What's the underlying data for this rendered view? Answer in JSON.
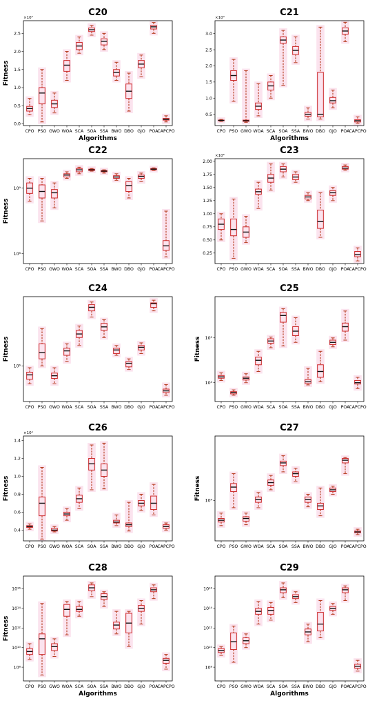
{
  "chart_data": [
    {
      "type": "box",
      "title": "C20",
      "xlabel": "Algorithms",
      "ylabel": "Fitness",
      "scale": "linear",
      "multiplier": "×10⁵",
      "yticks": [
        "0.0",
        "0.5",
        "1.0",
        "1.5",
        "2.0",
        "2.5"
      ],
      "ytick_values": [
        0,
        0.5,
        1.0,
        1.5,
        2.0,
        2.5
      ],
      "ylim": [
        -0.05,
        2.85
      ],
      "categories": [
        "CPO",
        "PSO",
        "GWO",
        "WOA",
        "SCA",
        "SOA",
        "SSA",
        "BWO",
        "DBO",
        "GJO",
        "POA",
        "CAPCPO"
      ],
      "boxes": [
        [
          0.25,
          0.35,
          0.42,
          0.48,
          0.7
        ],
        [
          0.05,
          0.55,
          0.85,
          1.0,
          1.5
        ],
        [
          0.3,
          0.45,
          0.55,
          0.65,
          0.85
        ],
        [
          1.2,
          1.45,
          1.62,
          1.75,
          2.0
        ],
        [
          1.95,
          2.05,
          2.15,
          2.25,
          2.4
        ],
        [
          2.45,
          2.55,
          2.6,
          2.65,
          2.72
        ],
        [
          2.05,
          2.18,
          2.28,
          2.35,
          2.5
        ],
        [
          1.2,
          1.32,
          1.42,
          1.5,
          1.7
        ],
        [
          0.35,
          0.7,
          0.9,
          1.1,
          1.4
        ],
        [
          1.3,
          1.55,
          1.65,
          1.75,
          1.9
        ],
        [
          2.5,
          2.62,
          2.68,
          2.72,
          2.8
        ],
        [
          0.05,
          0.1,
          0.12,
          0.15,
          0.22
        ]
      ]
    },
    {
      "type": "box",
      "title": "C21",
      "xlabel": "Algorithms",
      "ylabel": "",
      "scale": "linear",
      "multiplier": "×10⁴",
      "yticks": [
        "0.5",
        "1.0",
        "1.5",
        "2.0",
        "2.5",
        "3.0"
      ],
      "ytick_values": [
        0.5,
        1.0,
        1.5,
        2.0,
        2.5,
        3.0
      ],
      "ylim": [
        0.15,
        3.4
      ],
      "categories": [
        "CPO",
        "PSO",
        "GWO",
        "WOA",
        "SCA",
        "SOA",
        "SSA",
        "BWO",
        "DBO",
        "GJO",
        "POA",
        "CAPCPO"
      ],
      "boxes": [
        [
          0.28,
          0.3,
          0.31,
          0.32,
          0.34
        ],
        [
          0.9,
          1.55,
          1.7,
          1.85,
          2.2
        ],
        [
          0.25,
          0.28,
          0.3,
          0.32,
          1.85
        ],
        [
          0.45,
          0.65,
          0.75,
          0.85,
          1.45
        ],
        [
          1.0,
          1.25,
          1.38,
          1.5,
          1.7
        ],
        [
          1.4,
          2.7,
          2.8,
          2.9,
          3.1
        ],
        [
          2.1,
          2.35,
          2.48,
          2.6,
          2.9
        ],
        [
          0.35,
          0.44,
          0.5,
          0.56,
          0.7
        ],
        [
          0.35,
          0.42,
          0.5,
          1.8,
          3.2
        ],
        [
          0.7,
          0.85,
          0.92,
          1.02,
          1.25
        ],
        [
          2.75,
          2.98,
          3.08,
          3.18,
          3.35
        ],
        [
          0.22,
          0.26,
          0.3,
          0.33,
          0.42
        ]
      ]
    },
    {
      "type": "box",
      "title": "C22",
      "xlabel": "",
      "ylabel": "Fitness",
      "scale": "log",
      "yticks": [
        "10⁸",
        "10⁹"
      ],
      "ytick_values": [
        8,
        9
      ],
      "ylim": [
        7.85,
        9.45
      ],
      "categories": [
        "CPO",
        "PSO",
        "GWO",
        "WOA",
        "SCA",
        "SOA",
        "SSA",
        "BWO",
        "DBO",
        "GJO",
        "POA",
        "CAPCPO"
      ],
      "boxes": [
        [
          8.8,
          8.92,
          9.0,
          9.08,
          9.15
        ],
        [
          8.5,
          8.85,
          8.95,
          9.05,
          9.15
        ],
        [
          8.7,
          8.85,
          8.93,
          8.98,
          9.08
        ],
        [
          9.15,
          9.17,
          9.2,
          9.22,
          9.25
        ],
        [
          9.22,
          9.25,
          9.28,
          9.3,
          9.32
        ],
        [
          9.26,
          9.27,
          9.28,
          9.29,
          9.3
        ],
        [
          9.23,
          9.25,
          9.26,
          9.27,
          9.28
        ],
        [
          9.12,
          9.15,
          9.17,
          9.19,
          9.22
        ],
        [
          8.85,
          8.95,
          9.04,
          9.1,
          9.15
        ],
        [
          9.1,
          9.15,
          9.18,
          9.2,
          9.23
        ],
        [
          9.27,
          9.28,
          9.29,
          9.3,
          9.31
        ],
        [
          7.95,
          8.05,
          8.12,
          8.2,
          8.65
        ]
      ]
    },
    {
      "type": "box",
      "title": "C23",
      "xlabel": "",
      "ylabel": "",
      "scale": "linear",
      "multiplier": "×10⁵",
      "yticks": [
        "0.25",
        "0.50",
        "0.75",
        "1.00",
        "1.25",
        "1.50",
        "1.75",
        "2.00"
      ],
      "ytick_values": [
        0.25,
        0.5,
        0.75,
        1.0,
        1.25,
        1.5,
        1.75,
        2.0
      ],
      "ylim": [
        0.05,
        2.05
      ],
      "categories": [
        "CPO",
        "PSO",
        "GWO",
        "WOA",
        "SCA",
        "SOA",
        "SSA",
        "BWO",
        "DBO",
        "GJO",
        "POA",
        "CAPCPO"
      ],
      "boxes": [
        [
          0.5,
          0.7,
          0.8,
          0.9,
          1.0
        ],
        [
          0.15,
          0.58,
          0.7,
          0.9,
          1.28
        ],
        [
          0.45,
          0.55,
          0.65,
          0.75,
          0.95
        ],
        [
          1.1,
          1.37,
          1.42,
          1.47,
          1.6
        ],
        [
          1.45,
          1.6,
          1.68,
          1.75,
          1.95
        ],
        [
          1.7,
          1.8,
          1.85,
          1.9,
          1.95
        ],
        [
          1.6,
          1.65,
          1.7,
          1.75,
          1.8
        ],
        [
          1.25,
          1.28,
          1.32,
          1.35,
          1.4
        ],
        [
          0.55,
          0.72,
          0.85,
          1.07,
          1.4
        ],
        [
          1.25,
          1.35,
          1.4,
          1.44,
          1.5
        ],
        [
          1.83,
          1.85,
          1.87,
          1.9,
          1.93
        ],
        [
          0.1,
          0.18,
          0.22,
          0.28,
          0.35
        ]
      ]
    },
    {
      "type": "box",
      "title": "C24",
      "xlabel": "",
      "ylabel": "Fitness",
      "scale": "log",
      "yticks": [
        "10⁶"
      ],
      "ytick_values": [
        6
      ],
      "ylim": [
        5.6,
        6.78
      ],
      "categories": [
        "CPO",
        "PSO",
        "GWO",
        "WOA",
        "SCA",
        "SOA",
        "SSA",
        "BWO",
        "DBO",
        "GJO",
        "POA",
        "CAPCPO"
      ],
      "boxes": [
        [
          5.8,
          5.85,
          5.9,
          5.93,
          5.98
        ],
        [
          6.0,
          6.08,
          6.15,
          6.25,
          6.42
        ],
        [
          5.8,
          5.86,
          5.89,
          5.92,
          5.98
        ],
        [
          6.05,
          6.12,
          6.17,
          6.2,
          6.25
        ],
        [
          6.23,
          6.32,
          6.36,
          6.4,
          6.45
        ],
        [
          6.55,
          6.62,
          6.66,
          6.69,
          6.72
        ],
        [
          6.32,
          6.4,
          6.44,
          6.48,
          6.52
        ],
        [
          6.12,
          6.14,
          6.18,
          6.2,
          6.23
        ],
        [
          5.96,
          5.99,
          6.03,
          6.05,
          6.08
        ],
        [
          6.14,
          6.18,
          6.21,
          6.23,
          6.26
        ],
        [
          6.62,
          6.66,
          6.7,
          6.71,
          6.74
        ],
        [
          5.67,
          5.7,
          5.72,
          5.74,
          5.79
        ]
      ]
    },
    {
      "type": "box",
      "title": "C25",
      "xlabel": "",
      "ylabel": "Fitness",
      "scale": "log",
      "yticks": [
        "10⁴",
        "10⁵"
      ],
      "ytick_values": [
        4,
        5
      ],
      "ylim": [
        3.58,
        5.92
      ],
      "categories": [
        "CPO",
        "PSO",
        "GWO",
        "WOA",
        "SCA",
        "SOA",
        "SSA",
        "BWO",
        "DBO",
        "GJO",
        "POA",
        "CAPCPO"
      ],
      "boxes": [
        [
          4.05,
          4.1,
          4.13,
          4.16,
          4.22
        ],
        [
          3.72,
          3.75,
          3.78,
          3.8,
          3.84
        ],
        [
          4.0,
          4.06,
          4.1,
          4.13,
          4.2
        ],
        [
          4.25,
          4.4,
          4.5,
          4.57,
          4.7
        ],
        [
          4.78,
          4.88,
          4.93,
          4.98,
          5.02
        ],
        [
          4.82,
          5.35,
          5.5,
          5.57,
          5.65
        ],
        [
          4.9,
          5.05,
          5.15,
          5.25,
          5.45
        ],
        [
          3.95,
          3.98,
          4.02,
          4.07,
          4.32
        ],
        [
          4.02,
          4.12,
          4.25,
          4.4,
          4.7
        ],
        [
          4.8,
          4.85,
          4.9,
          4.95,
          5.0
        ],
        [
          4.95,
          5.15,
          5.25,
          5.33,
          5.6
        ],
        [
          3.87,
          3.97,
          4.0,
          4.05,
          4.12
        ]
      ]
    },
    {
      "type": "box",
      "title": "C26",
      "xlabel": "",
      "ylabel": "Fitness",
      "scale": "linear",
      "multiplier": "×10⁴",
      "yticks": [
        "0.4",
        "0.6",
        "0.8",
        "1.0",
        "1.2",
        "1.4"
      ],
      "ytick_values": [
        0.4,
        0.6,
        0.8,
        1.0,
        1.2,
        1.4
      ],
      "ylim": [
        0.28,
        1.45
      ],
      "categories": [
        "CPO",
        "PSO",
        "GWO",
        "WOA",
        "SCA",
        "SOA",
        "SSA",
        "BWO",
        "DBO",
        "GJO",
        "POA",
        "CAPCPO"
      ],
      "boxes": [
        [
          0.41,
          0.43,
          0.44,
          0.45,
          0.47
        ],
        [
          0.3,
          0.56,
          0.7,
          0.77,
          1.1
        ],
        [
          0.38,
          0.39,
          0.4,
          0.42,
          0.44
        ],
        [
          0.51,
          0.56,
          0.58,
          0.6,
          0.64
        ],
        [
          0.64,
          0.71,
          0.75,
          0.79,
          0.87
        ],
        [
          0.85,
          1.07,
          1.14,
          1.2,
          1.35
        ],
        [
          0.86,
          1.0,
          1.07,
          1.14,
          1.37
        ],
        [
          0.45,
          0.48,
          0.49,
          0.51,
          0.57
        ],
        [
          0.39,
          0.44,
          0.46,
          0.48,
          0.71
        ],
        [
          0.62,
          0.67,
          0.7,
          0.73,
          0.8
        ],
        [
          0.57,
          0.63,
          0.7,
          0.78,
          0.91
        ],
        [
          0.4,
          0.42,
          0.44,
          0.46,
          0.48
        ]
      ]
    },
    {
      "type": "box",
      "title": "C27",
      "xlabel": "",
      "ylabel": "Fitness",
      "scale": "log",
      "yticks": [
        "10⁴"
      ],
      "ytick_values": [
        4
      ],
      "ylim": [
        3.55,
        4.72
      ],
      "categories": [
        "CPO",
        "PSO",
        "GWO",
        "WOA",
        "SCA",
        "SOA",
        "SSA",
        "BWO",
        "DBO",
        "GJO",
        "POA",
        "CAPCPO"
      ],
      "boxes": [
        [
          3.72,
          3.76,
          3.78,
          3.8,
          3.86
        ],
        [
          3.92,
          4.1,
          4.15,
          4.19,
          4.3
        ],
        [
          3.73,
          3.77,
          3.8,
          3.82,
          3.86
        ],
        [
          3.92,
          3.98,
          4.01,
          4.04,
          4.09
        ],
        [
          4.12,
          4.17,
          4.2,
          4.23,
          4.28
        ],
        [
          4.32,
          4.39,
          4.42,
          4.44,
          4.5
        ],
        [
          4.21,
          4.27,
          4.3,
          4.32,
          4.36
        ],
        [
          3.93,
          3.98,
          4.01,
          4.04,
          4.07
        ],
        [
          3.83,
          3.9,
          3.94,
          3.97,
          4.14
        ],
        [
          4.07,
          4.1,
          4.12,
          4.14,
          4.16
        ],
        [
          4.3,
          4.42,
          4.45,
          4.47,
          4.48
        ],
        [
          3.62,
          3.64,
          3.65,
          3.66,
          3.68
        ]
      ]
    },
    {
      "type": "box",
      "title": "C28",
      "xlabel": "Algorithms",
      "ylabel": "Fitness",
      "scale": "log",
      "yticks": [
        "10⁸",
        "10¹⁰",
        "10¹²",
        "10¹⁴",
        "10¹⁶"
      ],
      "ytick_values": [
        8,
        10,
        12,
        14,
        16
      ],
      "ylim": [
        6.6,
        17.3
      ],
      "categories": [
        "CPO",
        "PSO",
        "GWO",
        "WOA",
        "SCA",
        "SOA",
        "SSA",
        "BWO",
        "DBO",
        "GJO",
        "POA",
        "CAPCPO"
      ],
      "boxes": [
        [
          8.8,
          9.3,
          9.6,
          9.9,
          10.4
        ],
        [
          7.2,
          9.3,
          10.9,
          11.4,
          14.5
        ],
        [
          9.1,
          9.7,
          10.1,
          10.4,
          10.9
        ],
        [
          11.3,
          13.2,
          13.9,
          14.4,
          14.7
        ],
        [
          13.2,
          13.7,
          13.9,
          14.2,
          14.7
        ],
        [
          15.2,
          15.8,
          16.1,
          16.4,
          16.6
        ],
        [
          14.2,
          14.9,
          15.2,
          15.5,
          15.7
        ],
        [
          11.4,
          11.9,
          12.3,
          12.6,
          13.7
        ],
        [
          10.1,
          11.5,
          12.5,
          13.5,
          13.7
        ],
        [
          12.4,
          13.7,
          14.0,
          14.3,
          14.8
        ],
        [
          15.0,
          15.7,
          15.9,
          16.1,
          16.4
        ],
        [
          7.8,
          8.4,
          8.7,
          8.9,
          9.3
        ]
      ]
    },
    {
      "type": "box",
      "title": "C29",
      "xlabel": "Algorithms",
      "ylabel": "",
      "scale": "log",
      "yticks": [
        "10⁸",
        "10¹⁰",
        "10¹²",
        "10¹⁴",
        "10¹⁶"
      ],
      "ytick_values": [
        8,
        10,
        12,
        14,
        16
      ],
      "ylim": [
        6.6,
        17.3
      ],
      "categories": [
        "CPO",
        "PSO",
        "GWO",
        "WOA",
        "SCA",
        "SOA",
        "SSA",
        "BWO",
        "DBO",
        "GJO",
        "POA",
        "CAPCPO"
      ],
      "boxes": [
        [
          9.2,
          9.5,
          9.7,
          9.9,
          10.1
        ],
        [
          8.5,
          9.8,
          10.6,
          11.5,
          12.2
        ],
        [
          10.0,
          10.4,
          10.7,
          11.0,
          11.4
        ],
        [
          12.4,
          13.4,
          13.7,
          14.0,
          14.7
        ],
        [
          12.8,
          13.4,
          13.8,
          14.1,
          14.6
        ],
        [
          15.1,
          15.6,
          15.9,
          16.1,
          16.6
        ],
        [
          14.6,
          15.0,
          15.2,
          15.4,
          15.7
        ],
        [
          10.6,
          11.3,
          11.6,
          11.9,
          12.4
        ],
        [
          11.0,
          11.7,
          12.4,
          13.6,
          14.8
        ],
        [
          13.4,
          13.8,
          14.0,
          14.2,
          14.5
        ],
        [
          14.8,
          15.6,
          15.9,
          16.1,
          16.3
        ],
        [
          7.6,
          7.9,
          8.1,
          8.3,
          8.7
        ]
      ]
    }
  ]
}
